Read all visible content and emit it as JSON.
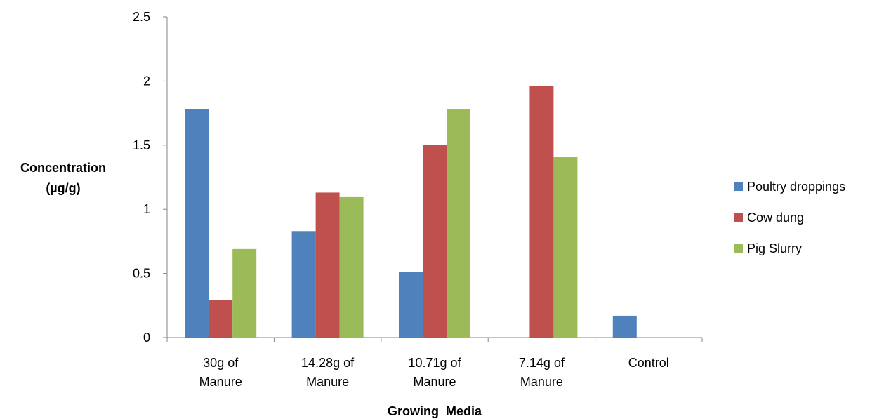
{
  "chart_data": {
    "type": "bar",
    "title": "",
    "xlabel": "Growing  Media",
    "ylabel_lines": [
      "Concentration",
      "(µg/g)"
    ],
    "categories": [
      [
        "30g of",
        "Manure"
      ],
      [
        "14.28g of",
        "Manure"
      ],
      [
        "10.71g of",
        "Manure"
      ],
      [
        "7.14g of",
        "Manure"
      ],
      [
        "Control"
      ]
    ],
    "series": [
      {
        "name": "Poultry droppings",
        "color": "#4F81BD",
        "values": [
          1.78,
          0.83,
          0.51,
          0,
          0.17
        ]
      },
      {
        "name": "Cow dung",
        "color": "#C0504D",
        "values": [
          0.29,
          1.13,
          1.5,
          1.96,
          0
        ]
      },
      {
        "name": "Pig Slurry",
        "color": "#9BBB59",
        "values": [
          0.69,
          1.1,
          1.78,
          1.41,
          0
        ]
      }
    ],
    "ylim": [
      0,
      2.5
    ],
    "yticks": [
      "0",
      "0.5",
      "1",
      "1.5",
      "2",
      "2.5"
    ],
    "grid": false,
    "legend": "right"
  }
}
